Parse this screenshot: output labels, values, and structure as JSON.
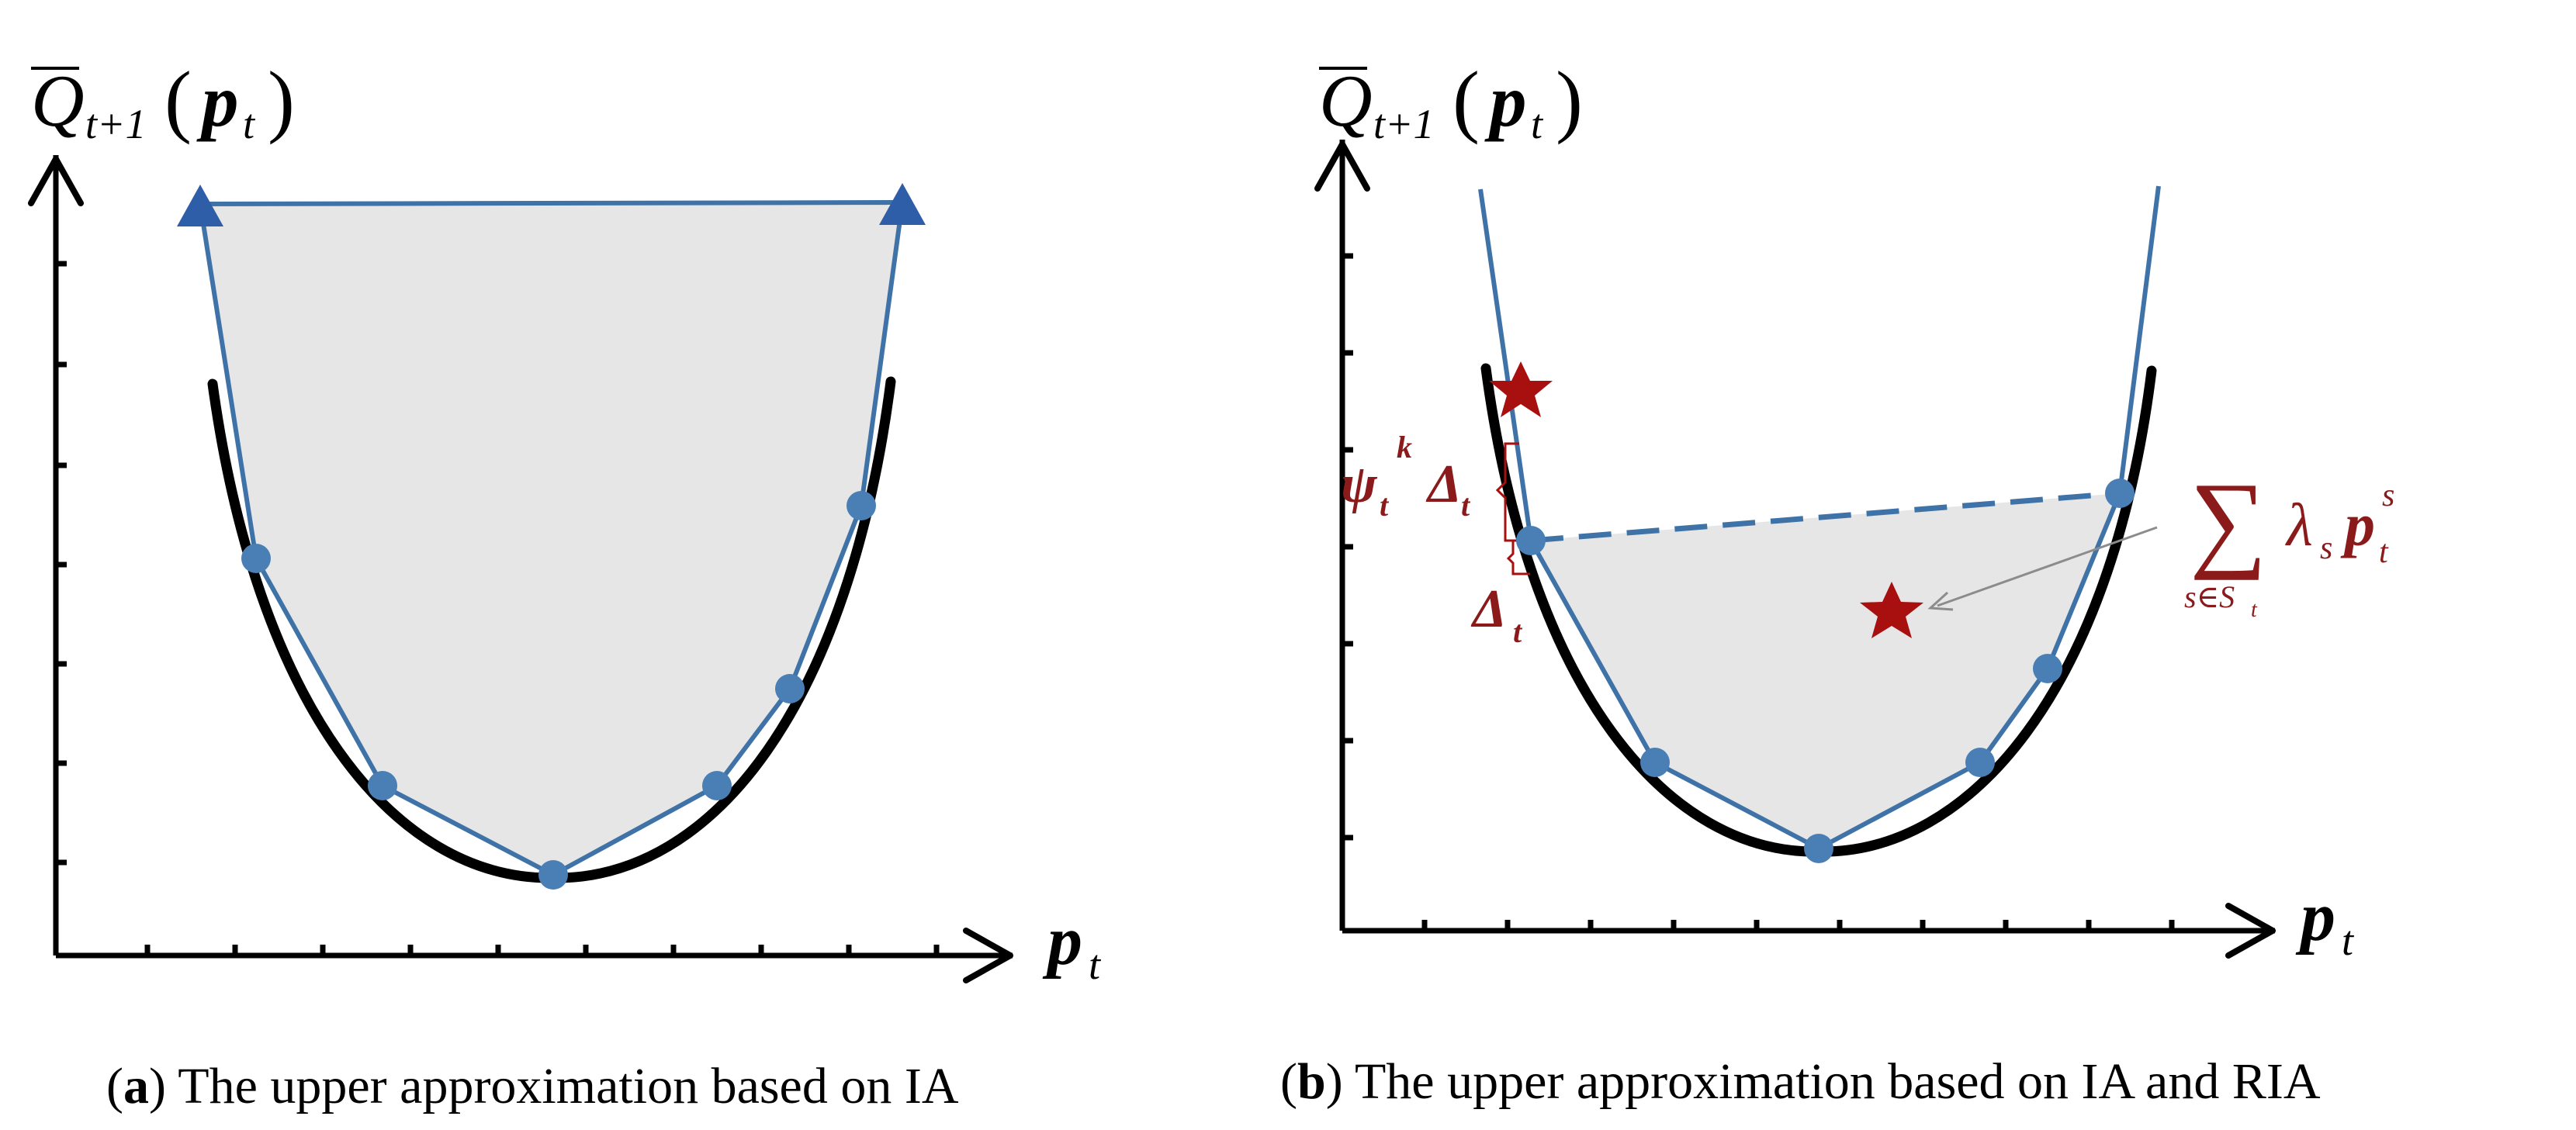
{
  "colors": {
    "curve": "#000000",
    "approx": "#3f73a8",
    "point": "#4a7fb5",
    "triangle": "#2f5ea8",
    "shade": "#e6e6e6",
    "star": "#a80f0f",
    "annotation": "#8b1a1a",
    "arrow_gray": "#8c8c8c"
  },
  "panel_a": {
    "ylabel": {
      "q": "Q",
      "sub": "t+1",
      "open": "(",
      "p": "p",
      "psub": "t",
      "close": ")"
    },
    "xlabel": {
      "p": "p",
      "sub": "t"
    },
    "caption": {
      "open": "(",
      "letter": "a",
      "text": ") The upper approximation based on IA"
    }
  },
  "panel_b": {
    "ylabel": {
      "q": "Q",
      "sub": "t+1",
      "open": "(",
      "p": "p",
      "psub": "t",
      "close": ")"
    },
    "xlabel": {
      "p": "p",
      "sub": "t"
    },
    "psi_label": {
      "psi": "ψ",
      "psi_sub": "t",
      "psi_sup": "k",
      "delta": "Δ",
      "delta_sub": "t"
    },
    "delta_label": {
      "delta": "Δ",
      "sub": "t"
    },
    "sum_label": {
      "sum": "∑",
      "under": "s∈S",
      "under_sub": "t",
      "lambda": "λ",
      "lambda_sub": "s",
      "p": "p",
      "p_sub": "t",
      "p_sup": "s"
    },
    "caption": {
      "open": "(",
      "letter": "b",
      "text": ") The upper approximation based on IA and RIA"
    }
  }
}
